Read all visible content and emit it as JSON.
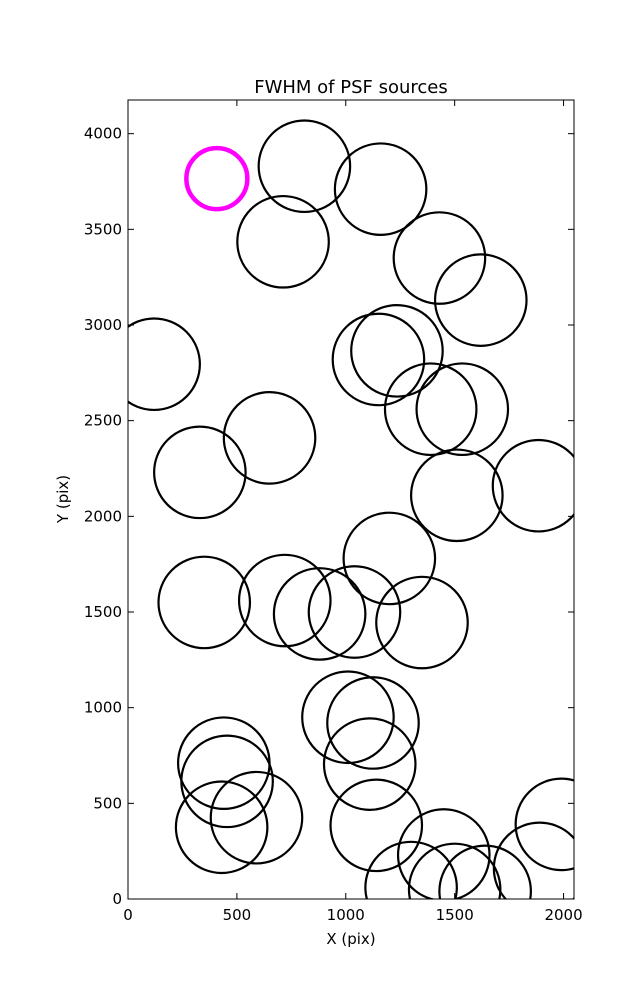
{
  "chart_data": {
    "type": "scatter",
    "title": "FWHM of PSF sources",
    "xlabel": "X (pix)",
    "ylabel": "Y (pix)",
    "xlim": [
      0,
      2048
    ],
    "ylim": [
      0,
      4176
    ],
    "grid": false,
    "x_ticks": [
      0,
      500,
      1000,
      1500,
      2000
    ],
    "x_tick_labels": [
      "0",
      "500",
      "1000",
      "1500",
      "2000"
    ],
    "y_ticks": [
      0,
      500,
      1000,
      1500,
      2000,
      2500,
      3000,
      3500,
      4000
    ],
    "y_tick_labels": [
      "0",
      "500",
      "1000",
      "1500",
      "2000",
      "2500",
      "3000",
      "3500",
      "4000"
    ],
    "marker_style": {
      "fill": "none",
      "edge_color": "#000000"
    },
    "highlight_color": "#ff00ff",
    "points": [
      {
        "x": 408,
        "y": 3765,
        "size": 140,
        "highlight": true
      },
      {
        "x": 810,
        "y": 3830,
        "size": 210
      },
      {
        "x": 1160,
        "y": 3710,
        "size": 210
      },
      {
        "x": 712,
        "y": 3435,
        "size": 210
      },
      {
        "x": 1430,
        "y": 3350,
        "size": 210
      },
      {
        "x": 1620,
        "y": 3130,
        "size": 210
      },
      {
        "x": 1235,
        "y": 2865,
        "size": 210
      },
      {
        "x": 1150,
        "y": 2820,
        "size": 210
      },
      {
        "x": 120,
        "y": 2795,
        "size": 210
      },
      {
        "x": 1390,
        "y": 2560,
        "size": 210
      },
      {
        "x": 1535,
        "y": 2560,
        "size": 210
      },
      {
        "x": 650,
        "y": 2410,
        "size": 210
      },
      {
        "x": 330,
        "y": 2230,
        "size": 210
      },
      {
        "x": 1885,
        "y": 2160,
        "size": 210
      },
      {
        "x": 1510,
        "y": 2110,
        "size": 210
      },
      {
        "x": 1200,
        "y": 1780,
        "size": 210
      },
      {
        "x": 350,
        "y": 1550,
        "size": 210
      },
      {
        "x": 720,
        "y": 1560,
        "size": 210
      },
      {
        "x": 880,
        "y": 1490,
        "size": 210
      },
      {
        "x": 1040,
        "y": 1500,
        "size": 210
      },
      {
        "x": 1350,
        "y": 1445,
        "size": 210
      },
      {
        "x": 1010,
        "y": 950,
        "size": 210
      },
      {
        "x": 1125,
        "y": 920,
        "size": 210
      },
      {
        "x": 1110,
        "y": 705,
        "size": 210
      },
      {
        "x": 440,
        "y": 710,
        "size": 210
      },
      {
        "x": 455,
        "y": 615,
        "size": 210
      },
      {
        "x": 590,
        "y": 425,
        "size": 210
      },
      {
        "x": 430,
        "y": 375,
        "size": 210
      },
      {
        "x": 1140,
        "y": 385,
        "size": 210
      },
      {
        "x": 1990,
        "y": 390,
        "size": 210
      },
      {
        "x": 1450,
        "y": 230,
        "size": 210
      },
      {
        "x": 1300,
        "y": 60,
        "size": 210
      },
      {
        "x": 1500,
        "y": 50,
        "size": 210
      },
      {
        "x": 1640,
        "y": 40,
        "size": 210
      },
      {
        "x": 1890,
        "y": 160,
        "size": 210
      }
    ]
  }
}
